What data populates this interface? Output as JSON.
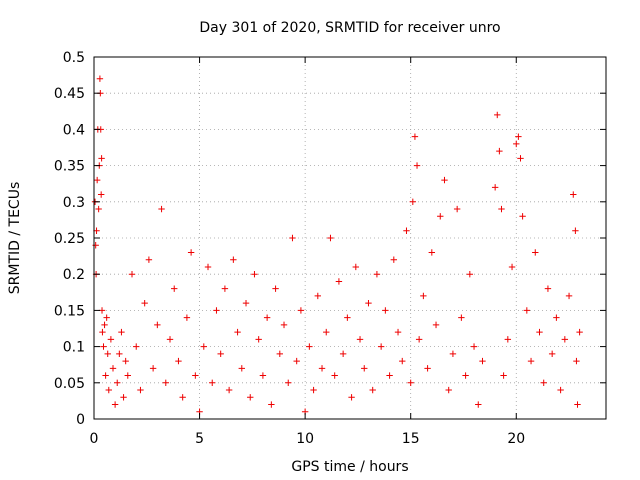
{
  "chart_data": {
    "type": "scatter",
    "title": "Day 301 of 2020, SRMTID for receiver unro",
    "xlabel": "GPS time / hours",
    "ylabel": "SRMTID / TECUs",
    "xlim": [
      0,
      24.25
    ],
    "ylim": [
      0,
      0.5
    ],
    "xticks": [
      0,
      5,
      10,
      15,
      20
    ],
    "yticks": [
      0,
      0.05,
      0.1,
      0.15,
      0.2,
      0.25,
      0.3,
      0.35,
      0.4,
      0.45,
      0.5
    ],
    "xtick_labels": [
      "0",
      "5",
      "10",
      "15",
      "20"
    ],
    "ytick_labels": [
      "0",
      "0.05",
      "0.1",
      "0.15",
      "0.2",
      "0.25",
      "0.3",
      "0.35",
      "0.4",
      "0.45",
      "0.5"
    ],
    "grid": true,
    "marker": "+",
    "color": "#ee0000",
    "data_gap_hours": [
      18.6,
      19.0
    ],
    "series": [
      {
        "name": "SRMTID",
        "points": [
          [
            0.05,
            0.3
          ],
          [
            0.08,
            0.24
          ],
          [
            0.1,
            0.2
          ],
          [
            0.12,
            0.26
          ],
          [
            0.15,
            0.33
          ],
          [
            0.18,
            0.4
          ],
          [
            0.22,
            0.29
          ],
          [
            0.25,
            0.35
          ],
          [
            0.28,
            0.47
          ],
          [
            0.3,
            0.45
          ],
          [
            0.32,
            0.4
          ],
          [
            0.34,
            0.31
          ],
          [
            0.36,
            0.36
          ],
          [
            0.38,
            0.15
          ],
          [
            0.4,
            0.12
          ],
          [
            0.45,
            0.1
          ],
          [
            0.5,
            0.13
          ],
          [
            0.55,
            0.06
          ],
          [
            0.6,
            0.14
          ],
          [
            0.65,
            0.09
          ],
          [
            0.7,
            0.04
          ],
          [
            0.8,
            0.11
          ],
          [
            0.9,
            0.07
          ],
          [
            1.0,
            0.02
          ],
          [
            1.1,
            0.05
          ],
          [
            1.2,
            0.09
          ],
          [
            1.3,
            0.12
          ],
          [
            1.4,
            0.03
          ],
          [
            1.5,
            0.08
          ],
          [
            1.6,
            0.06
          ],
          [
            1.8,
            0.2
          ],
          [
            2.0,
            0.1
          ],
          [
            2.2,
            0.04
          ],
          [
            2.4,
            0.16
          ],
          [
            2.6,
            0.22
          ],
          [
            2.8,
            0.07
          ],
          [
            3.0,
            0.13
          ],
          [
            3.2,
            0.29
          ],
          [
            3.4,
            0.05
          ],
          [
            3.6,
            0.11
          ],
          [
            3.8,
            0.18
          ],
          [
            4.0,
            0.08
          ],
          [
            4.2,
            0.03
          ],
          [
            4.4,
            0.14
          ],
          [
            4.6,
            0.23
          ],
          [
            4.8,
            0.06
          ],
          [
            5.0,
            0.01
          ],
          [
            5.2,
            0.1
          ],
          [
            5.4,
            0.21
          ],
          [
            5.6,
            0.05
          ],
          [
            5.8,
            0.15
          ],
          [
            6.0,
            0.09
          ],
          [
            6.2,
            0.18
          ],
          [
            6.4,
            0.04
          ],
          [
            6.6,
            0.22
          ],
          [
            6.8,
            0.12
          ],
          [
            7.0,
            0.07
          ],
          [
            7.2,
            0.16
          ],
          [
            7.4,
            0.03
          ],
          [
            7.6,
            0.2
          ],
          [
            7.8,
            0.11
          ],
          [
            8.0,
            0.06
          ],
          [
            8.2,
            0.14
          ],
          [
            8.4,
            0.02
          ],
          [
            8.6,
            0.18
          ],
          [
            8.8,
            0.09
          ],
          [
            9.0,
            0.13
          ],
          [
            9.2,
            0.05
          ],
          [
            9.4,
            0.25
          ],
          [
            9.6,
            0.08
          ],
          [
            9.8,
            0.15
          ],
          [
            10.0,
            0.01
          ],
          [
            10.2,
            0.1
          ],
          [
            10.4,
            0.04
          ],
          [
            10.6,
            0.17
          ],
          [
            10.8,
            0.07
          ],
          [
            11.0,
            0.12
          ],
          [
            11.2,
            0.25
          ],
          [
            11.4,
            0.06
          ],
          [
            11.6,
            0.19
          ],
          [
            11.8,
            0.09
          ],
          [
            12.0,
            0.14
          ],
          [
            12.2,
            0.03
          ],
          [
            12.4,
            0.21
          ],
          [
            12.6,
            0.11
          ],
          [
            12.8,
            0.07
          ],
          [
            13.0,
            0.16
          ],
          [
            13.2,
            0.04
          ],
          [
            13.4,
            0.2
          ],
          [
            13.6,
            0.1
          ],
          [
            13.8,
            0.15
          ],
          [
            14.0,
            0.06
          ],
          [
            14.2,
            0.22
          ],
          [
            14.4,
            0.12
          ],
          [
            14.6,
            0.08
          ],
          [
            14.8,
            0.26
          ],
          [
            15.0,
            0.05
          ],
          [
            15.1,
            0.3
          ],
          [
            15.2,
            0.39
          ],
          [
            15.3,
            0.35
          ],
          [
            15.4,
            0.11
          ],
          [
            15.6,
            0.17
          ],
          [
            15.8,
            0.07
          ],
          [
            16.0,
            0.23
          ],
          [
            16.2,
            0.13
          ],
          [
            16.4,
            0.28
          ],
          [
            16.6,
            0.33
          ],
          [
            16.8,
            0.04
          ],
          [
            17.0,
            0.09
          ],
          [
            17.2,
            0.29
          ],
          [
            17.4,
            0.14
          ],
          [
            17.6,
            0.06
          ],
          [
            17.8,
            0.2
          ],
          [
            18.0,
            0.1
          ],
          [
            18.2,
            0.02
          ],
          [
            18.4,
            0.08
          ],
          [
            19.0,
            0.32
          ],
          [
            19.1,
            0.42
          ],
          [
            19.2,
            0.37
          ],
          [
            19.3,
            0.29
          ],
          [
            19.4,
            0.06
          ],
          [
            19.6,
            0.11
          ],
          [
            19.8,
            0.21
          ],
          [
            20.0,
            0.38
          ],
          [
            20.1,
            0.39
          ],
          [
            20.2,
            0.36
          ],
          [
            20.3,
            0.28
          ],
          [
            20.5,
            0.15
          ],
          [
            20.7,
            0.08
          ],
          [
            20.9,
            0.23
          ],
          [
            21.1,
            0.12
          ],
          [
            21.3,
            0.05
          ],
          [
            21.5,
            0.18
          ],
          [
            21.7,
            0.09
          ],
          [
            21.9,
            0.14
          ],
          [
            22.1,
            0.04
          ],
          [
            22.3,
            0.11
          ],
          [
            22.5,
            0.17
          ],
          [
            22.7,
            0.31
          ],
          [
            22.8,
            0.26
          ],
          [
            22.85,
            0.08
          ],
          [
            22.9,
            0.02
          ],
          [
            23.0,
            0.12
          ]
        ]
      }
    ]
  }
}
